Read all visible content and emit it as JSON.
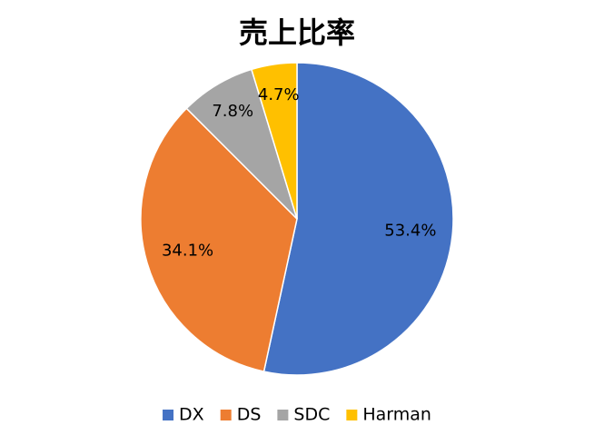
{
  "chart_data": {
    "type": "pie",
    "title": "売上比率",
    "categories": [
      "DX",
      "DS",
      "SDC",
      "Harman"
    ],
    "values": [
      53.4,
      34.1,
      7.8,
      4.7
    ],
    "value_labels": [
      "53.4%",
      "34.1%",
      "7.8%",
      "4.7%"
    ],
    "colors": [
      "#4472c4",
      "#ed7d31",
      "#a5a5a5",
      "#ffc000"
    ],
    "legend": "bottom"
  }
}
